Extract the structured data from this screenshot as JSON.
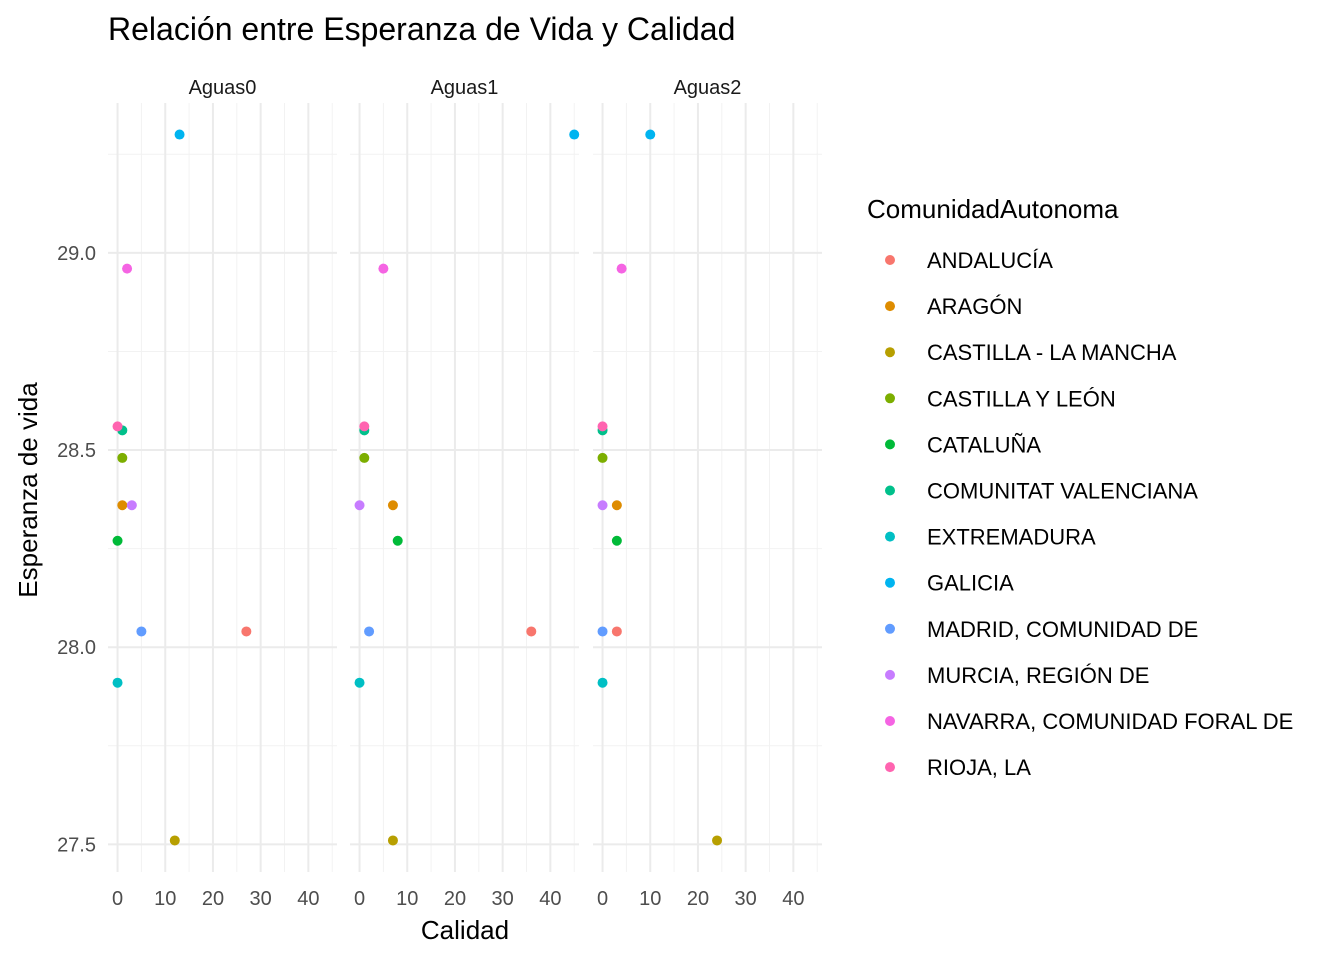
{
  "chart_data": {
    "type": "scatter",
    "title": "Relación entre Esperanza de Vida y Calidad",
    "xlabel": "Calidad",
    "ylabel": "Esperanza de vida",
    "facets": [
      "Aguas0",
      "Aguas1",
      "Aguas2"
    ],
    "xlim": [
      -2,
      46
    ],
    "ylim": [
      27.43,
      29.38
    ],
    "x_ticks": [
      0,
      10,
      20,
      30,
      40
    ],
    "y_ticks": [
      27.5,
      28.0,
      28.5,
      29.0
    ],
    "y_tick_labels": [
      "27.5",
      "28.0",
      "28.5",
      "29.0"
    ],
    "grid": true,
    "legend_title": "ComunidadAutonoma",
    "legend_position": "right",
    "series": [
      {
        "name": "ANDALUCÍA",
        "color": "#F8766D",
        "y": 28.04,
        "x": [
          27,
          36,
          3
        ]
      },
      {
        "name": "ARAGÓN",
        "color": "#DE8C00",
        "y": 28.36,
        "x": [
          1,
          7,
          3
        ]
      },
      {
        "name": "CASTILLA - LA MANCHA",
        "color": "#B79F00",
        "y": 27.51,
        "x": [
          12,
          7,
          24
        ]
      },
      {
        "name": "CASTILLA Y LEÓN",
        "color": "#7CAE00",
        "y": 28.48,
        "x": [
          1,
          1,
          0
        ]
      },
      {
        "name": "CATALUÑA",
        "color": "#00BA38",
        "y": 28.27,
        "x": [
          0,
          8,
          3
        ]
      },
      {
        "name": "COMUNITAT VALENCIANA",
        "color": "#00C08B",
        "y": 28.55,
        "x": [
          1,
          1,
          0
        ]
      },
      {
        "name": "EXTREMADURA",
        "color": "#00BFC4",
        "y": 27.91,
        "x": [
          0,
          0,
          0
        ]
      },
      {
        "name": "GALICIA",
        "color": "#00B4F0",
        "y": 29.3,
        "x": [
          13,
          45,
          10
        ]
      },
      {
        "name": "MADRID, COMUNIDAD DE",
        "color": "#619CFF",
        "y": 28.04,
        "x": [
          5,
          2,
          0
        ]
      },
      {
        "name": "MURCIA, REGIÓN DE",
        "color": "#C77CFF",
        "y": 28.36,
        "x": [
          3,
          0,
          0
        ]
      },
      {
        "name": "NAVARRA, COMUNIDAD FORAL DE",
        "color": "#F564E3",
        "y": 28.96,
        "x": [
          2,
          5,
          4
        ]
      },
      {
        "name": "RIOJA, LA",
        "color": "#FF64B0",
        "y": 28.56,
        "x": [
          0,
          1,
          0
        ]
      }
    ]
  }
}
